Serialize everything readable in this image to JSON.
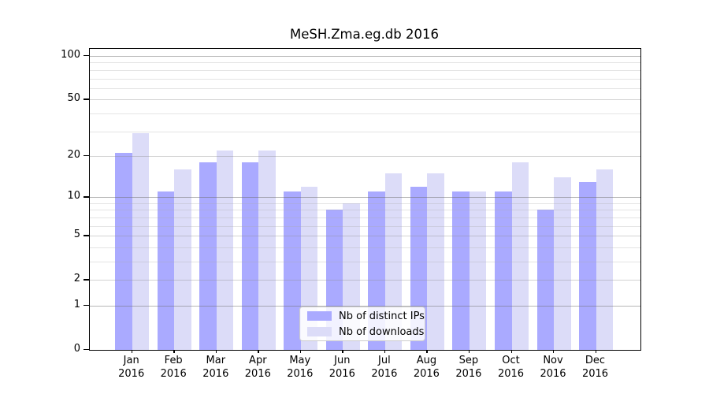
{
  "chart_data": {
    "type": "bar",
    "title": "MeSH.Zma.eg.db 2016",
    "categories": [
      {
        "month": "Jan",
        "year": "2016"
      },
      {
        "month": "Feb",
        "year": "2016"
      },
      {
        "month": "Mar",
        "year": "2016"
      },
      {
        "month": "Apr",
        "year": "2016"
      },
      {
        "month": "May",
        "year": "2016"
      },
      {
        "month": "Jun",
        "year": "2016"
      },
      {
        "month": "Jul",
        "year": "2016"
      },
      {
        "month": "Aug",
        "year": "2016"
      },
      {
        "month": "Sep",
        "year": "2016"
      },
      {
        "month": "Oct",
        "year": "2016"
      },
      {
        "month": "Nov",
        "year": "2016"
      },
      {
        "month": "Dec",
        "year": "2016"
      }
    ],
    "series": [
      {
        "name": "Nb of distinct IPs",
        "color": "#aaaaff",
        "values": [
          21,
          11,
          18,
          18,
          11,
          8,
          11,
          12,
          11,
          11,
          8,
          13
        ]
      },
      {
        "name": "Nb of downloads",
        "color": "#dcdcf8",
        "values": [
          29,
          16,
          22,
          22,
          12,
          9,
          15,
          15,
          11,
          18,
          14,
          16
        ]
      }
    ],
    "yscale": "log10(1+x)",
    "ylim": [
      0,
      100
    ],
    "yticks": [
      0,
      1,
      2,
      5,
      10,
      20,
      50,
      100
    ],
    "ytick_labels": [
      "0",
      "1",
      "2",
      "5",
      "10",
      "20",
      "50",
      "100"
    ],
    "decade_gridlines": [
      1,
      10,
      100
    ],
    "mid_gridlines": [
      2,
      5,
      20,
      50
    ],
    "minor_gridlines": [
      3,
      4,
      6,
      7,
      8,
      9,
      30,
      40,
      60,
      70,
      80,
      90
    ],
    "grid": true,
    "legend_position": "lower center",
    "xlabel": "",
    "ylabel": ""
  },
  "colors": {
    "background": "#ffffff",
    "spine": "#000000",
    "bar_distinct_ips": "#aaaaff",
    "bar_downloads": "#dcdcf8",
    "legend_border": "#cccccc"
  }
}
